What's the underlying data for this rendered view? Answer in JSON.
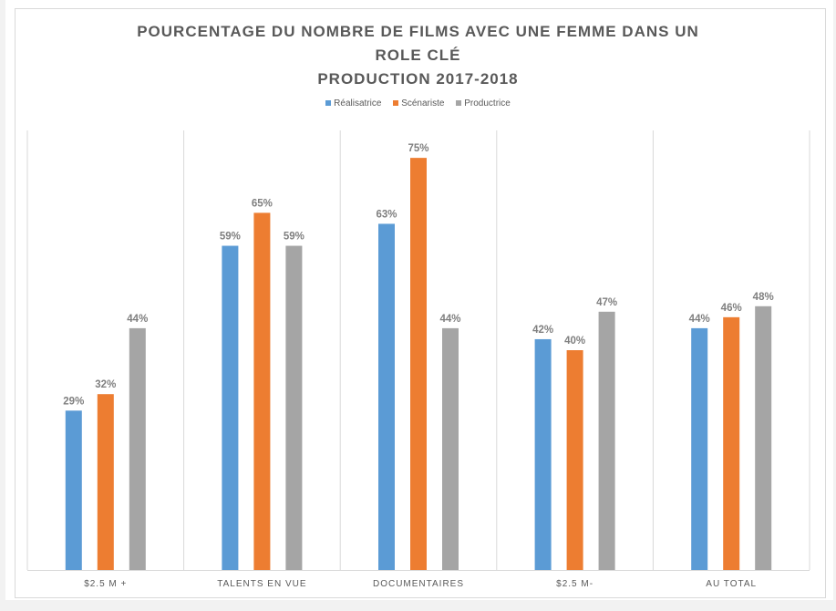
{
  "chart_data": {
    "type": "bar",
    "title": [
      "POURCENTAGE DU NOMBRE DE FILMS AVEC UNE FEMME DANS UN",
      "ROLE CLÉ",
      "PRODUCTION 2017-2018"
    ],
    "categories": [
      "$2.5 M +",
      "TALENTS EN VUE",
      "DOCUMENTAIRES",
      "$2.5 M-",
      "AU TOTAL"
    ],
    "series": [
      {
        "name": "Réalisatrice",
        "color": "#5b9bd5",
        "values": [
          29,
          59,
          63,
          42,
          44
        ],
        "labels": [
          "29%",
          "59%",
          "63%",
          "42%",
          "44%"
        ]
      },
      {
        "name": "Scénariste",
        "color": "#ed7d31",
        "values": [
          32,
          65,
          75,
          40,
          46
        ],
        "labels": [
          "32%",
          "65%",
          "75%",
          "40%",
          "46%"
        ]
      },
      {
        "name": "Productrice",
        "color": "#a5a5a5",
        "values": [
          44,
          59,
          44,
          47,
          48
        ],
        "labels": [
          "44%",
          "59%",
          "44%",
          "47%",
          "48%"
        ]
      }
    ],
    "ylim": [
      0,
      80
    ],
    "xlabel": "",
    "ylabel": "",
    "grid": "vertical category separators",
    "legend": "top"
  }
}
